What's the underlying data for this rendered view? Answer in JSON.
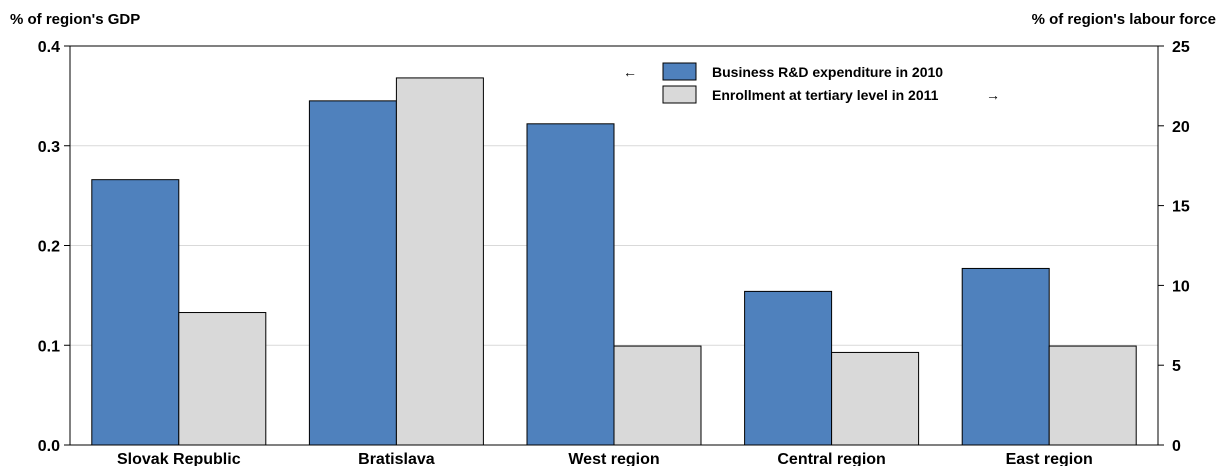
{
  "chart_data": {
    "type": "bar",
    "categories": [
      "Slovak Republic",
      "Bratislava",
      "West region",
      "Central region",
      "East region"
    ],
    "series": [
      {
        "name": "Business R&D expenditure in 2010",
        "axis": "left",
        "color": "#4f81bd",
        "values": [
          0.266,
          0.345,
          0.322,
          0.154,
          0.177
        ]
      },
      {
        "name": "Enrollment at tertiary level in 2011",
        "axis": "right",
        "color": "#d9d9d9",
        "values": [
          8.3,
          23.0,
          6.2,
          5.8,
          6.2
        ]
      }
    ],
    "ylabel_left": "% of region's GDP",
    "ylabel_right": "% of region's labour force",
    "ylim_left": [
      0,
      0.4
    ],
    "ylim_right": [
      0,
      25
    ],
    "yticks_left": [
      "0.0",
      "0.1",
      "0.2",
      "0.3",
      "0.4"
    ],
    "yticks_right": [
      "0",
      "5",
      "10",
      "15",
      "20",
      "25"
    ],
    "legend_arrows": [
      "←",
      "→"
    ],
    "legend_position": "top-center",
    "grid": true
  }
}
